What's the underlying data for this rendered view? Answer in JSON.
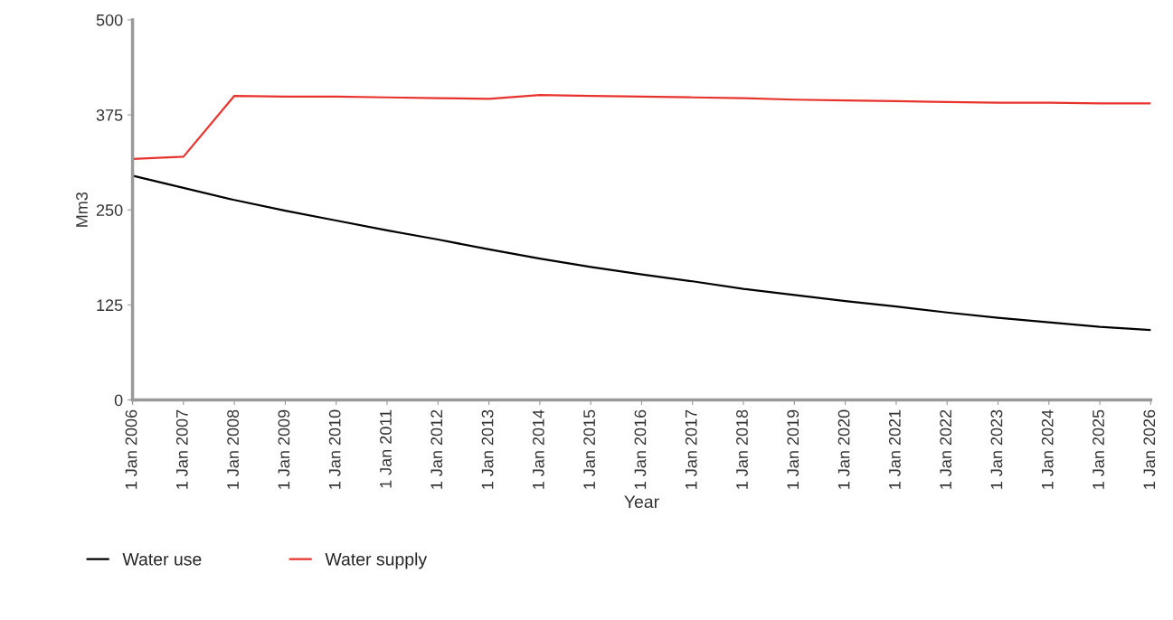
{
  "chart_data": {
    "type": "line",
    "xlabel": "Year",
    "ylabel": "Mm3",
    "categories": [
      "1 Jan 2006",
      "1 Jan 2007",
      "1 Jan 2008",
      "1 Jan 2009",
      "1 Jan 2010",
      "1 Jan 2011",
      "1 Jan 2012",
      "1 Jan 2013",
      "1 Jan 2014",
      "1 Jan 2015",
      "1 Jan 2016",
      "1 Jan 2017",
      "1 Jan 2018",
      "1 Jan 2019",
      "1 Jan 2020",
      "1 Jan 2021",
      "1 Jan 2022",
      "1 Jan 2023",
      "1 Jan 2024",
      "1 Jan 2025",
      "1 Jan 2026"
    ],
    "series": [
      {
        "name": "Water use",
        "color": "#000000",
        "values": [
          295,
          279,
          263,
          249,
          236,
          223,
          211,
          198,
          186,
          175,
          165,
          156,
          146,
          138,
          130,
          123,
          115,
          108,
          102,
          96,
          92
        ]
      },
      {
        "name": "Water supply",
        "color": "#e8322c",
        "values": [
          317,
          320,
          400,
          399,
          399,
          398,
          397,
          396,
          401,
          400,
          399,
          398,
          397,
          395,
          394,
          393,
          392,
          391,
          391,
          390,
          390
        ]
      }
    ],
    "ylim": [
      0,
      500
    ],
    "yticks": [
      0,
      125,
      250,
      375,
      500
    ],
    "grid": false,
    "legend": "bottom left",
    "marker": "none",
    "line_style": "solid"
  }
}
